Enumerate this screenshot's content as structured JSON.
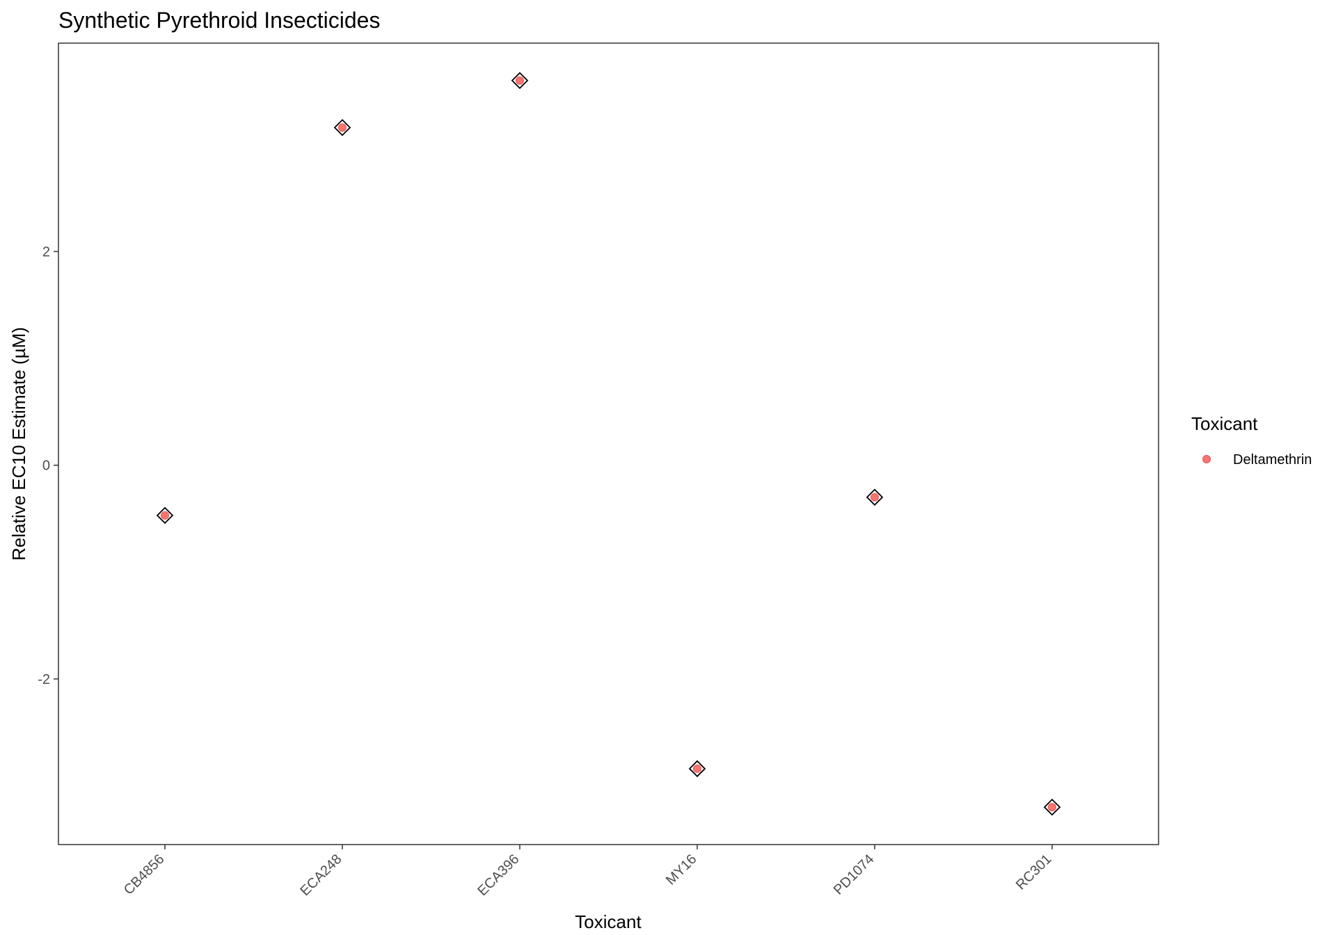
{
  "chart_data": {
    "type": "scatter",
    "title": "Synthetic Pyrethroid Insecticides",
    "xlabel": "Toxicant",
    "ylabel": "Relative EC10 Estimate (µM)",
    "categories": [
      "CB4856",
      "ECA248",
      "ECA396",
      "MY16",
      "PD1074",
      "RC301"
    ],
    "series": [
      {
        "name": "Deltamethrin",
        "color": "#F8766D",
        "marker": "circle",
        "values": [
          -0.47,
          3.16,
          3.6,
          -2.84,
          -0.3,
          -3.2
        ]
      },
      {
        "marker": "diamond-open",
        "color": "#000000",
        "values": [
          -0.47,
          3.16,
          3.6,
          -2.84,
          -0.3,
          -3.2
        ]
      }
    ],
    "ylim": [
      -3.55,
      3.95
    ],
    "yticks": [
      -2,
      0,
      2
    ],
    "ytick_labels": [
      "-2",
      "0",
      "2"
    ],
    "grid": false,
    "legend": {
      "title": "Toxicant",
      "entries": [
        "Deltamethrin"
      ],
      "placement": "right"
    }
  }
}
